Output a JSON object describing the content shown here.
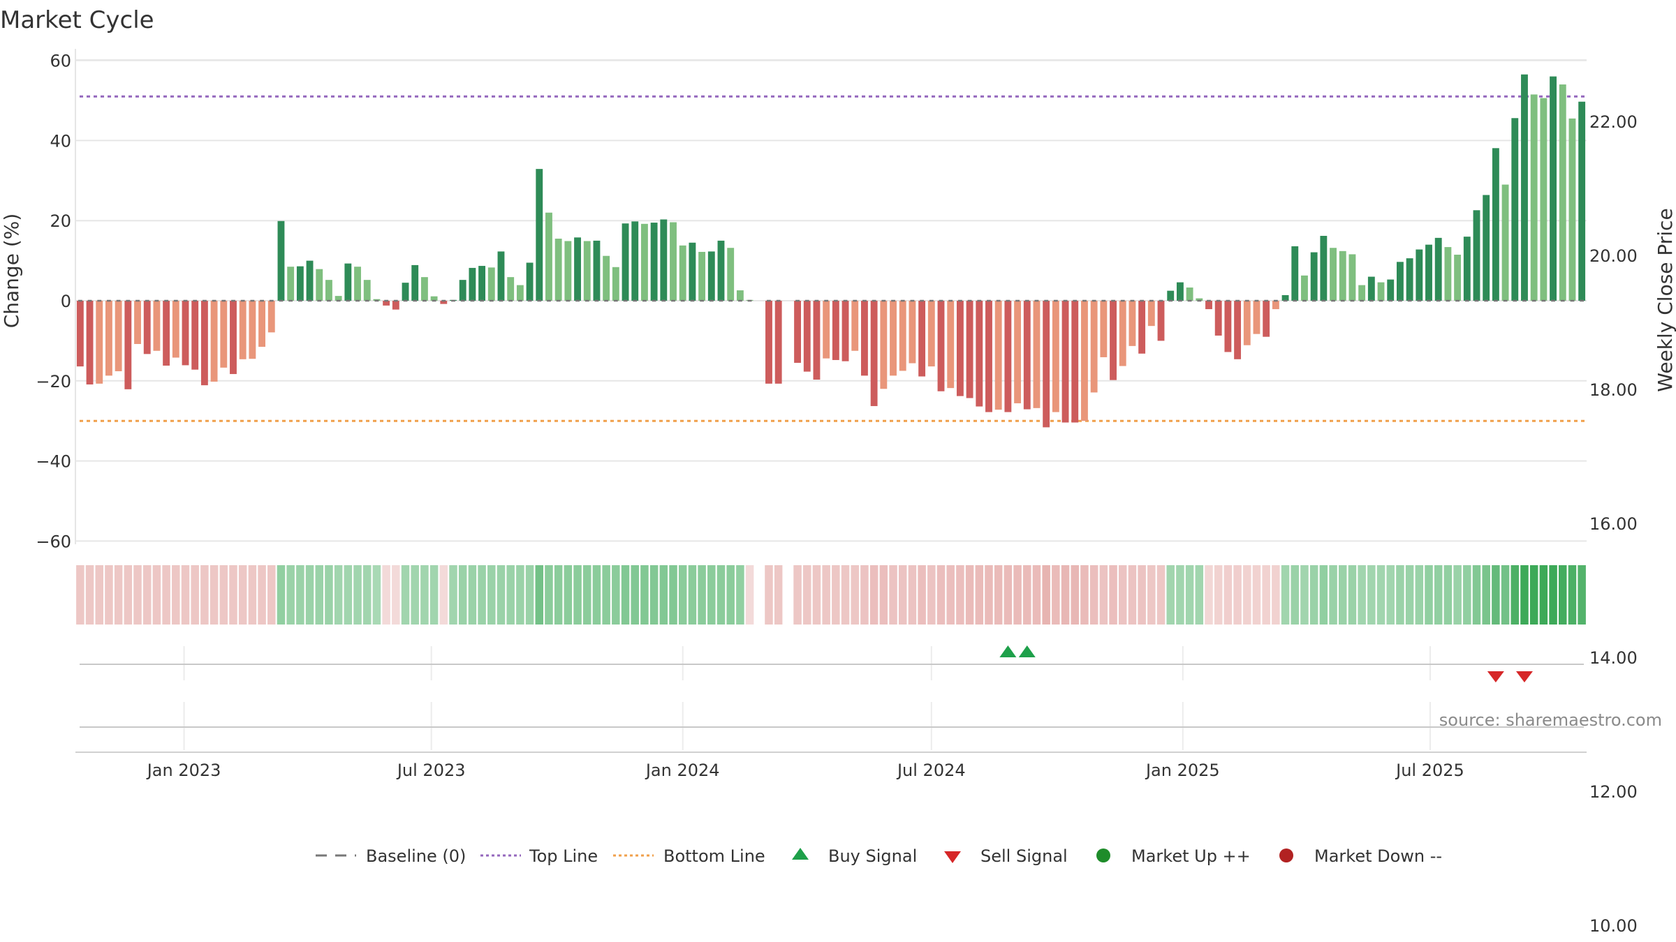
{
  "chart_data": {
    "type": "bar",
    "title": "Market Cycle",
    "ylabel_left": "Change (%)",
    "ylabel_right": "Weekly Close Price",
    "source_note": "source: sharemaestro.com",
    "left_axis": {
      "ylim": [
        -60,
        60
      ],
      "ticks": [
        60,
        40,
        20,
        0,
        -20,
        -40,
        -60
      ],
      "tick_labels": [
        "60",
        "40",
        "20",
        "0",
        "−20",
        "−40",
        "−60"
      ]
    },
    "right_axis": {
      "ticks": [
        22,
        20,
        18,
        16,
        14,
        12,
        10
      ],
      "tick_labels": [
        "22.00",
        "20.00",
        "18.00",
        "16.00",
        "14.00",
        "12.00",
        "10.00"
      ]
    },
    "x_axis": {
      "start_date": "2022-10-17",
      "tick_dates": [
        "2023-01-01",
        "2023-07-01",
        "2024-01-01",
        "2024-07-01",
        "2025-01-01",
        "2025-07-01"
      ],
      "tick_labels": [
        "Jan 2023",
        "Jul 2023",
        "Jan 2024",
        "Jul 2024",
        "Jan 2025",
        "Jul 2025"
      ]
    },
    "grid": true,
    "reference_lines": {
      "baseline": 0,
      "top_line": 51,
      "bottom_line": -30
    },
    "weekly_change": [
      -16.4,
      -20.9,
      -20.7,
      -18.7,
      -17.6,
      -22.1,
      -10.8,
      -13.3,
      -12.5,
      -16.2,
      -14.2,
      -16.1,
      -17.2,
      -21.1,
      -20.2,
      -16.7,
      -18.3,
      -14.6,
      -14.5,
      -11.5,
      -7.9,
      19.9,
      8.5,
      8.6,
      10.0,
      7.9,
      5.2,
      1.2,
      9.3,
      8.5,
      5.2,
      0.4,
      -1.2,
      -2.2,
      4.5,
      8.9,
      5.9,
      1.1,
      -0.8,
      0.2,
      5.2,
      8.2,
      8.7,
      8.3,
      12.3,
      5.9,
      3.9,
      9.5,
      32.9,
      22.0,
      15.5,
      14.9,
      15.8,
      14.9,
      15.0,
      11.2,
      8.4,
      19.3,
      19.8,
      19.2,
      19.5,
      20.3,
      19.6,
      13.8,
      14.5,
      12.2,
      12.3,
      15.0,
      13.2,
      2.6,
      0.2,
      null,
      -20.7,
      -20.7,
      null,
      -15.5,
      -17.7,
      -19.7,
      -14.4,
      -14.8,
      -15.1,
      -12.5,
      -18.7,
      -26.3,
      -22.0,
      -18.7,
      -17.5,
      -15.6,
      -18.9,
      -16.4,
      -22.6,
      -21.8,
      -23.8,
      -24.3,
      -26.4,
      -27.8,
      -27.2,
      -27.8,
      -25.6,
      -27.1,
      -26.8,
      -31.6,
      -27.8,
      -30.4,
      -30.4,
      -30.0,
      -22.9,
      -14.1,
      -19.8,
      -16.3,
      -11.3,
      -13.2,
      -6.3,
      -10.0,
      2.5,
      4.6,
      3.3,
      0.6,
      -2.1,
      -8.7,
      -12.8,
      -14.6,
      -11.1,
      -8.3,
      -9.0,
      -2.1,
      1.4,
      13.6,
      6.3,
      12.1,
      16.2,
      13.2,
      12.4,
      11.6,
      3.9,
      6.0,
      4.6,
      5.3,
      9.7,
      10.6,
      12.8,
      14.0,
      15.7,
      13.4,
      11.5,
      16.0,
      22.6,
      26.4,
      38.1,
      29.0,
      45.6,
      56.5,
      51.5,
      50.6,
      56.0,
      54.0,
      45.5,
      49.7
    ],
    "market_strength": [
      -0.45,
      -0.45,
      -0.45,
      -0.45,
      -0.45,
      -0.45,
      -0.45,
      -0.45,
      -0.45,
      -0.45,
      -0.45,
      -0.45,
      -0.45,
      -0.45,
      -0.45,
      -0.45,
      -0.45,
      -0.45,
      -0.45,
      -0.45,
      -0.45,
      0.4,
      0.35,
      0.35,
      0.35,
      0.35,
      0.35,
      0.3,
      0.3,
      0.3,
      0.3,
      0.25,
      -0.2,
      -0.2,
      0.3,
      0.3,
      0.3,
      0.3,
      -0.2,
      0.3,
      0.35,
      0.35,
      0.35,
      0.35,
      0.35,
      0.35,
      0.35,
      0.35,
      0.6,
      0.45,
      0.45,
      0.45,
      0.45,
      0.45,
      0.45,
      0.45,
      0.45,
      0.5,
      0.5,
      0.5,
      0.5,
      0.5,
      0.5,
      0.45,
      0.45,
      0.45,
      0.45,
      0.45,
      0.45,
      0.4,
      -0.2,
      null,
      -0.45,
      -0.45,
      null,
      -0.45,
      -0.45,
      -0.45,
      -0.45,
      -0.45,
      -0.45,
      -0.45,
      -0.5,
      -0.55,
      -0.55,
      -0.5,
      -0.5,
      -0.5,
      -0.55,
      -0.5,
      -0.55,
      -0.55,
      -0.55,
      -0.6,
      -0.6,
      -0.6,
      -0.6,
      -0.6,
      -0.6,
      -0.6,
      -0.6,
      -0.7,
      -0.6,
      -0.65,
      -0.65,
      -0.6,
      -0.55,
      -0.5,
      -0.55,
      -0.5,
      -0.5,
      -0.5,
      -0.45,
      -0.45,
      0.3,
      0.3,
      0.3,
      0.3,
      -0.25,
      -0.3,
      -0.35,
      -0.35,
      -0.3,
      -0.3,
      -0.3,
      -0.3,
      0.3,
      0.35,
      0.3,
      0.35,
      0.4,
      0.35,
      0.35,
      0.35,
      0.3,
      0.3,
      0.3,
      0.3,
      0.35,
      0.35,
      0.35,
      0.4,
      0.4,
      0.4,
      0.35,
      0.4,
      0.5,
      0.55,
      0.7,
      0.6,
      0.85,
      0.95,
      0.95,
      0.95,
      0.95,
      0.9,
      0.85,
      0.8
    ],
    "buy_signals": [
      "2024-08-26",
      "2024-09-09"
    ],
    "sell_signals": [
      "2025-08-18",
      "2025-09-08"
    ],
    "legend": {
      "placement": "bottom-center",
      "items": [
        {
          "label": "Baseline (0)",
          "marker": "dash",
          "color": "#777777"
        },
        {
          "label": "Top Line",
          "marker": "dot",
          "color": "#9467bd"
        },
        {
          "label": "Bottom Line",
          "marker": "dot",
          "color": "#f0a04b"
        },
        {
          "label": "Buy Signal",
          "marker": "triangle-up",
          "color": "#1ea04a"
        },
        {
          "label": "Sell Signal",
          "marker": "triangle-down",
          "color": "#d62728"
        },
        {
          "label": "Market Up ++",
          "marker": "circle",
          "color": "#1e8c2a"
        },
        {
          "label": "Market Down --",
          "marker": "circle",
          "color": "#b22222"
        }
      ]
    },
    "colors": {
      "bar_up_strong": "#2e8b57",
      "bar_up_light": "#7fbf7f",
      "bar_down_strong": "#cd5c5c",
      "bar_down_light": "#e9967a",
      "top_line": "#9467bd",
      "bottom_line": "#f0a04b",
      "baseline": "#777777"
    }
  }
}
